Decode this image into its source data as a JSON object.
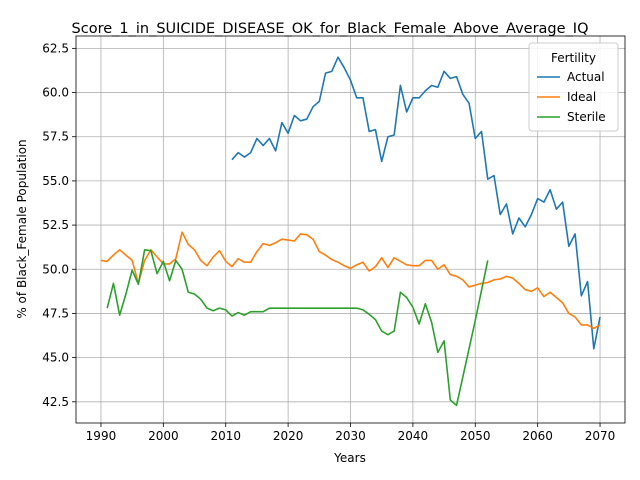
{
  "chart_data": {
    "type": "line",
    "title": "Score_1_in_SUICIDE_DISEASE_OK_for_Black_Female_Above_Average_IQ",
    "xlabel": "Years",
    "ylabel": "% of Black_Female Population",
    "xlim": [
      1986,
      2074
    ],
    "ylim": [
      41.3,
      63.2
    ],
    "x_ticks": [
      1990,
      2000,
      2010,
      2020,
      2030,
      2040,
      2050,
      2060,
      2070
    ],
    "y_ticks": [
      42.5,
      45.0,
      47.5,
      50.0,
      52.5,
      55.0,
      57.5,
      60.0,
      62.5
    ],
    "grid": true,
    "legend": {
      "title": "Fertility",
      "placement": "top-right"
    },
    "series": [
      {
        "name": "Actual",
        "color": "#1f77b4",
        "points": [
          [
            2011,
            56.2
          ],
          [
            2012,
            56.6
          ],
          [
            2013,
            56.35
          ],
          [
            2014,
            56.6
          ],
          [
            2015,
            57.4
          ],
          [
            2016,
            57.0
          ],
          [
            2017,
            57.4
          ],
          [
            2018,
            56.7
          ],
          [
            2019,
            58.3
          ],
          [
            2020,
            57.7
          ],
          [
            2021,
            58.7
          ],
          [
            2022,
            58.4
          ],
          [
            2023,
            58.5
          ],
          [
            2024,
            59.2
          ],
          [
            2025,
            59.5
          ],
          [
            2026,
            61.1
          ],
          [
            2027,
            61.2
          ],
          [
            2028,
            62.0
          ],
          [
            2029,
            61.4
          ],
          [
            2030,
            60.7
          ],
          [
            2031,
            59.7
          ],
          [
            2032,
            59.7
          ],
          [
            2033,
            57.8
          ],
          [
            2034,
            57.9
          ],
          [
            2035,
            56.1
          ],
          [
            2036,
            57.5
          ],
          [
            2037,
            57.6
          ],
          [
            2038,
            60.4
          ],
          [
            2039,
            58.9
          ],
          [
            2040,
            59.7
          ],
          [
            2041,
            59.7
          ],
          [
            2042,
            60.1
          ],
          [
            2043,
            60.4
          ],
          [
            2044,
            60.3
          ],
          [
            2045,
            61.2
          ],
          [
            2046,
            60.8
          ],
          [
            2047,
            60.9
          ],
          [
            2048,
            59.9
          ],
          [
            2049,
            59.4
          ],
          [
            2050,
            57.4
          ],
          [
            2051,
            57.8
          ],
          [
            2052,
            55.1
          ],
          [
            2053,
            55.3
          ],
          [
            2054,
            53.1
          ],
          [
            2055,
            53.7
          ],
          [
            2056,
            52.0
          ],
          [
            2057,
            52.9
          ],
          [
            2058,
            52.4
          ],
          [
            2059,
            53.1
          ],
          [
            2060,
            54.0
          ],
          [
            2061,
            53.8
          ],
          [
            2062,
            54.5
          ],
          [
            2063,
            53.4
          ],
          [
            2064,
            53.8
          ],
          [
            2065,
            51.3
          ],
          [
            2066,
            52.0
          ],
          [
            2067,
            48.5
          ],
          [
            2068,
            49.3
          ],
          [
            2069,
            45.5
          ],
          [
            2070,
            47.3
          ]
        ]
      },
      {
        "name": "Ideal",
        "color": "#ff7f0e",
        "points": [
          [
            1990,
            50.5
          ],
          [
            1991,
            50.45
          ],
          [
            1992,
            50.8
          ],
          [
            1993,
            51.1
          ],
          [
            1994,
            50.8
          ],
          [
            1995,
            50.5
          ],
          [
            1996,
            49.2
          ],
          [
            1997,
            50.5
          ],
          [
            1998,
            51.1
          ],
          [
            1999,
            50.7
          ],
          [
            2000,
            50.3
          ],
          [
            2001,
            50.3
          ],
          [
            2002,
            50.6
          ],
          [
            2003,
            52.1
          ],
          [
            2004,
            51.4
          ],
          [
            2005,
            51.1
          ],
          [
            2006,
            50.5
          ],
          [
            2007,
            50.2
          ],
          [
            2008,
            50.7
          ],
          [
            2009,
            51.05
          ],
          [
            2010,
            50.45
          ],
          [
            2011,
            50.15
          ],
          [
            2012,
            50.6
          ],
          [
            2013,
            50.4
          ],
          [
            2014,
            50.4
          ],
          [
            2015,
            51.0
          ],
          [
            2016,
            51.45
          ],
          [
            2017,
            51.35
          ],
          [
            2018,
            51.5
          ],
          [
            2019,
            51.7
          ],
          [
            2020,
            51.65
          ],
          [
            2021,
            51.6
          ],
          [
            2022,
            52.0
          ],
          [
            2023,
            51.95
          ],
          [
            2024,
            51.7
          ],
          [
            2025,
            51.0
          ],
          [
            2026,
            50.8
          ],
          [
            2027,
            50.55
          ],
          [
            2028,
            50.4
          ],
          [
            2029,
            50.2
          ],
          [
            2030,
            50.05
          ],
          [
            2031,
            50.25
          ],
          [
            2032,
            50.4
          ],
          [
            2033,
            49.9
          ],
          [
            2034,
            50.15
          ],
          [
            2035,
            50.65
          ],
          [
            2036,
            50.1
          ],
          [
            2037,
            50.65
          ],
          [
            2038,
            50.45
          ],
          [
            2039,
            50.25
          ],
          [
            2040,
            50.2
          ],
          [
            2041,
            50.2
          ],
          [
            2042,
            50.5
          ],
          [
            2043,
            50.5
          ],
          [
            2044,
            50.0
          ],
          [
            2045,
            50.25
          ],
          [
            2046,
            49.7
          ],
          [
            2047,
            49.6
          ],
          [
            2048,
            49.4
          ],
          [
            2049,
            49.0
          ],
          [
            2050,
            49.1
          ],
          [
            2051,
            49.2
          ],
          [
            2052,
            49.25
          ],
          [
            2053,
            49.4
          ],
          [
            2054,
            49.45
          ],
          [
            2055,
            49.6
          ],
          [
            2056,
            49.5
          ],
          [
            2057,
            49.2
          ],
          [
            2058,
            48.85
          ],
          [
            2059,
            48.75
          ],
          [
            2060,
            48.95
          ],
          [
            2061,
            48.45
          ],
          [
            2062,
            48.7
          ],
          [
            2063,
            48.4
          ],
          [
            2064,
            48.1
          ],
          [
            2065,
            47.5
          ],
          [
            2066,
            47.3
          ],
          [
            2067,
            46.85
          ],
          [
            2068,
            46.85
          ],
          [
            2069,
            46.65
          ],
          [
            2070,
            46.85
          ]
        ]
      },
      {
        "name": "Sterile",
        "color": "#2ca02c",
        "points": [
          [
            1991,
            47.8
          ],
          [
            1992,
            49.2
          ],
          [
            1993,
            47.4
          ],
          [
            1994,
            48.6
          ],
          [
            1995,
            49.95
          ],
          [
            1996,
            49.15
          ],
          [
            1997,
            51.1
          ],
          [
            1998,
            51.05
          ],
          [
            1999,
            49.75
          ],
          [
            2000,
            50.45
          ],
          [
            2001,
            49.35
          ],
          [
            2002,
            50.5
          ],
          [
            2003,
            50.0
          ],
          [
            2004,
            48.7
          ],
          [
            2005,
            48.6
          ],
          [
            2006,
            48.3
          ],
          [
            2007,
            47.8
          ],
          [
            2008,
            47.65
          ],
          [
            2009,
            47.8
          ],
          [
            2010,
            47.7
          ],
          [
            2011,
            47.35
          ],
          [
            2012,
            47.55
          ],
          [
            2013,
            47.4
          ],
          [
            2014,
            47.6
          ],
          [
            2015,
            47.6
          ],
          [
            2016,
            47.6
          ],
          [
            2017,
            47.8
          ],
          [
            2018,
            47.8
          ],
          [
            2019,
            47.8
          ],
          [
            2020,
            47.8
          ],
          [
            2021,
            47.8
          ],
          [
            2022,
            47.8
          ],
          [
            2023,
            47.8
          ],
          [
            2024,
            47.8
          ],
          [
            2025,
            47.8
          ],
          [
            2026,
            47.8
          ],
          [
            2027,
            47.8
          ],
          [
            2028,
            47.8
          ],
          [
            2029,
            47.8
          ],
          [
            2030,
            47.8
          ],
          [
            2031,
            47.8
          ],
          [
            2032,
            47.7
          ],
          [
            2033,
            47.45
          ],
          [
            2034,
            47.15
          ],
          [
            2035,
            46.5
          ],
          [
            2036,
            46.3
          ],
          [
            2037,
            46.5
          ],
          [
            2038,
            48.7
          ],
          [
            2039,
            48.4
          ],
          [
            2040,
            47.85
          ],
          [
            2041,
            46.9
          ],
          [
            2042,
            48.05
          ],
          [
            2043,
            47.0
          ],
          [
            2044,
            45.3
          ],
          [
            2045,
            45.95
          ],
          [
            2046,
            42.6
          ],
          [
            2047,
            42.3
          ],
          [
            2048,
            43.9
          ],
          [
            2049,
            45.5
          ],
          [
            2050,
            47.1
          ],
          [
            2051,
            48.8
          ],
          [
            2052,
            50.5
          ]
        ]
      }
    ]
  }
}
